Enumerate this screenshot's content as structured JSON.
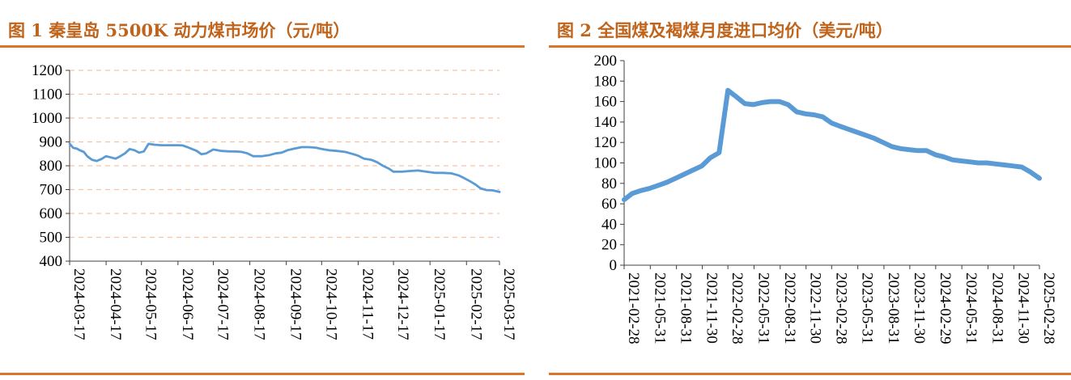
{
  "chart_data": [
    {
      "type": "line",
      "title": "图 1 秦皇岛 5500K 动力煤市场价（元/吨）",
      "ylim": [
        400,
        1200
      ],
      "yticks": [
        "1200",
        "1100",
        "1000",
        "900",
        "800",
        "700",
        "600",
        "500",
        "400"
      ],
      "xticks": [
        "2024-03-17",
        "2024-04-17",
        "2024-05-17",
        "2024-06-17",
        "2024-07-17",
        "2024-08-17",
        "2024-09-17",
        "2024-10-17",
        "2024-11-17",
        "2024-12-17",
        "2025-01-17",
        "2025-02-17",
        "2025-03-17"
      ],
      "grid": "horizontal-dashed",
      "color": "#5b9bd5",
      "series": [
        {
          "x": [
            "2024-03-17",
            "2024-03-20",
            "2024-03-23",
            "2024-03-26",
            "2024-03-29",
            "2024-04-01",
            "2024-04-05",
            "2024-04-09",
            "2024-04-13",
            "2024-04-17",
            "2024-04-21",
            "2024-04-25",
            "2024-04-29",
            "2024-05-03",
            "2024-05-07",
            "2024-05-11",
            "2024-05-15",
            "2024-05-19",
            "2024-05-23",
            "2024-05-28",
            "2024-06-03",
            "2024-06-10",
            "2024-06-17",
            "2024-06-21",
            "2024-06-25",
            "2024-06-29",
            "2024-07-03",
            "2024-07-07",
            "2024-07-11",
            "2024-07-17",
            "2024-07-24",
            "2024-07-31",
            "2024-08-05",
            "2024-08-10",
            "2024-08-15",
            "2024-08-20",
            "2024-08-27",
            "2024-09-03",
            "2024-09-08",
            "2024-09-13",
            "2024-09-18",
            "2024-09-24",
            "2024-09-30",
            "2024-10-06",
            "2024-10-12",
            "2024-10-17",
            "2024-10-23",
            "2024-10-30",
            "2024-11-06",
            "2024-11-12",
            "2024-11-17",
            "2024-11-22",
            "2024-11-28",
            "2024-12-03",
            "2024-12-08",
            "2024-12-13",
            "2024-12-17",
            "2024-12-24",
            "2024-12-31",
            "2025-01-07",
            "2025-01-14",
            "2025-01-21",
            "2025-01-28",
            "2025-02-04",
            "2025-02-10",
            "2025-02-15",
            "2025-02-20",
            "2025-02-25",
            "2025-03-01",
            "2025-03-06",
            "2025-03-11",
            "2025-03-17"
          ],
          "values": [
            893,
            875,
            872,
            864,
            858,
            840,
            825,
            820,
            828,
            840,
            835,
            830,
            840,
            852,
            870,
            865,
            855,
            860,
            892,
            888,
            886,
            886,
            886,
            885,
            878,
            870,
            862,
            848,
            852,
            868,
            862,
            860,
            860,
            858,
            852,
            840,
            840,
            845,
            852,
            855,
            865,
            872,
            878,
            878,
            876,
            870,
            865,
            862,
            858,
            850,
            842,
            830,
            825,
            815,
            800,
            788,
            775,
            775,
            778,
            780,
            775,
            770,
            770,
            768,
            760,
            748,
            735,
            720,
            705,
            698,
            697,
            690
          ]
        }
      ]
    },
    {
      "type": "line",
      "title": "图 2 全国煤及褐煤月度进口均价（美元/吨）",
      "ylim": [
        0,
        200
      ],
      "yticks": [
        "200",
        "180",
        "160",
        "140",
        "120",
        "100",
        "80",
        "60",
        "40",
        "20",
        "0"
      ],
      "xticks": [
        "2021-02-28",
        "2021-05-31",
        "2021-08-31",
        "2021-11-30",
        "2022-02-28",
        "2022-05-31",
        "2022-08-31",
        "2022-11-30",
        "2023-02-28",
        "2023-05-31",
        "2023-08-31",
        "2023-11-30",
        "2024-02-29",
        "2024-05-31",
        "2024-08-31",
        "2024-11-30",
        "2025-02-28"
      ],
      "grid": "none",
      "color": "#5b9bd5",
      "series": [
        {
          "x": [
            "2021-02",
            "2021-03",
            "2021-04",
            "2021-05",
            "2021-06",
            "2021-07",
            "2021-08",
            "2021-09",
            "2021-10",
            "2021-11",
            "2021-12",
            "2022-01",
            "2022-02",
            "2022-03",
            "2022-04",
            "2022-05",
            "2022-06",
            "2022-07",
            "2022-08",
            "2022-09",
            "2022-10",
            "2022-11",
            "2022-12",
            "2023-01",
            "2023-02",
            "2023-03",
            "2023-04",
            "2023-05",
            "2023-06",
            "2023-07",
            "2023-08",
            "2023-09",
            "2023-10",
            "2023-11",
            "2023-12",
            "2024-01",
            "2024-02",
            "2024-03",
            "2024-04",
            "2024-05",
            "2024-06",
            "2024-07",
            "2024-08",
            "2024-09",
            "2024-10",
            "2024-11",
            "2024-12",
            "2025-01",
            "2025-02"
          ],
          "values": [
            64,
            70,
            73,
            75,
            78,
            81,
            85,
            89,
            93,
            97,
            105,
            110,
            171,
            165,
            158,
            157,
            159,
            160,
            160,
            157,
            150,
            148,
            147,
            145,
            139,
            136,
            133,
            130,
            127,
            124,
            120,
            116,
            114,
            113,
            112,
            112,
            108,
            106,
            103,
            102,
            101,
            100,
            100,
            99,
            98,
            97,
            96,
            91,
            85
          ]
        }
      ]
    }
  ]
}
